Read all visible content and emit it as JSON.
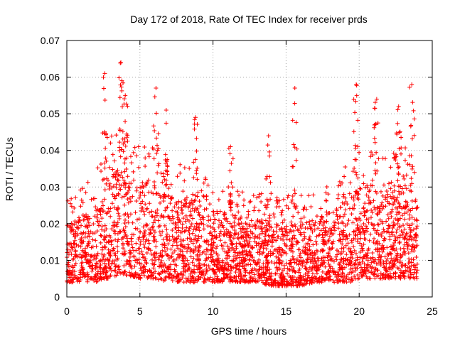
{
  "chart_data": {
    "type": "scatter",
    "title": "Day 172 of 2018, Rate Of TEC Index for receiver prds",
    "xlabel": "GPS time / hours",
    "ylabel": "ROTI / TECUs",
    "xlim": [
      0,
      25
    ],
    "ylim": [
      0,
      0.07
    ],
    "xticks": [
      0,
      5,
      10,
      15,
      20,
      25
    ],
    "xtick_labels": [
      "0",
      "5",
      "10",
      "15",
      "20",
      "25"
    ],
    "yticks": [
      0,
      0.01,
      0.02,
      0.03,
      0.04,
      0.05,
      0.06,
      0.07
    ],
    "ytick_labels": [
      "0",
      "0.01",
      "0.02",
      "0.03",
      "0.04",
      "0.05",
      "0.06",
      "0.07"
    ],
    "grid": true,
    "marker": "+",
    "color": "#ff0000",
    "x_range_observed": [
      0,
      24
    ],
    "envelope": {
      "description": "Dense cloud of ROTI values per epoch; typical range 0.003-0.025 with spikes",
      "hours": [
        0,
        1,
        2,
        2.5,
        3,
        3.5,
        4,
        5,
        6,
        7,
        8,
        8.5,
        9,
        10,
        11,
        12,
        13,
        14,
        15,
        15.5,
        16,
        17,
        18,
        19,
        19.5,
        20,
        21,
        22,
        22.5,
        23,
        23.5,
        24
      ],
      "typical_low": [
        0.004,
        0.004,
        0.004,
        0.005,
        0.005,
        0.006,
        0.006,
        0.005,
        0.005,
        0.004,
        0.004,
        0.004,
        0.004,
        0.004,
        0.004,
        0.004,
        0.004,
        0.003,
        0.003,
        0.003,
        0.003,
        0.004,
        0.004,
        0.004,
        0.004,
        0.005,
        0.005,
        0.005,
        0.005,
        0.005,
        0.005,
        0.005
      ],
      "typical_high": [
        0.02,
        0.022,
        0.025,
        0.03,
        0.033,
        0.035,
        0.034,
        0.032,
        0.03,
        0.028,
        0.027,
        0.026,
        0.025,
        0.024,
        0.023,
        0.022,
        0.021,
        0.021,
        0.021,
        0.021,
        0.021,
        0.021,
        0.024,
        0.027,
        0.028,
        0.03,
        0.03,
        0.029,
        0.03,
        0.031,
        0.029,
        0.028
      ],
      "peaks": [
        {
          "x": 2.6,
          "y": 0.061
        },
        {
          "x": 3.7,
          "y": 0.064
        },
        {
          "x": 4.0,
          "y": 0.055
        },
        {
          "x": 6.1,
          "y": 0.057
        },
        {
          "x": 6.8,
          "y": 0.051
        },
        {
          "x": 8.8,
          "y": 0.049
        },
        {
          "x": 11.2,
          "y": 0.041
        },
        {
          "x": 13.8,
          "y": 0.044
        },
        {
          "x": 15.6,
          "y": 0.057
        },
        {
          "x": 19.8,
          "y": 0.058
        },
        {
          "x": 21.2,
          "y": 0.054
        },
        {
          "x": 22.7,
          "y": 0.052
        },
        {
          "x": 23.6,
          "y": 0.058
        }
      ]
    }
  }
}
